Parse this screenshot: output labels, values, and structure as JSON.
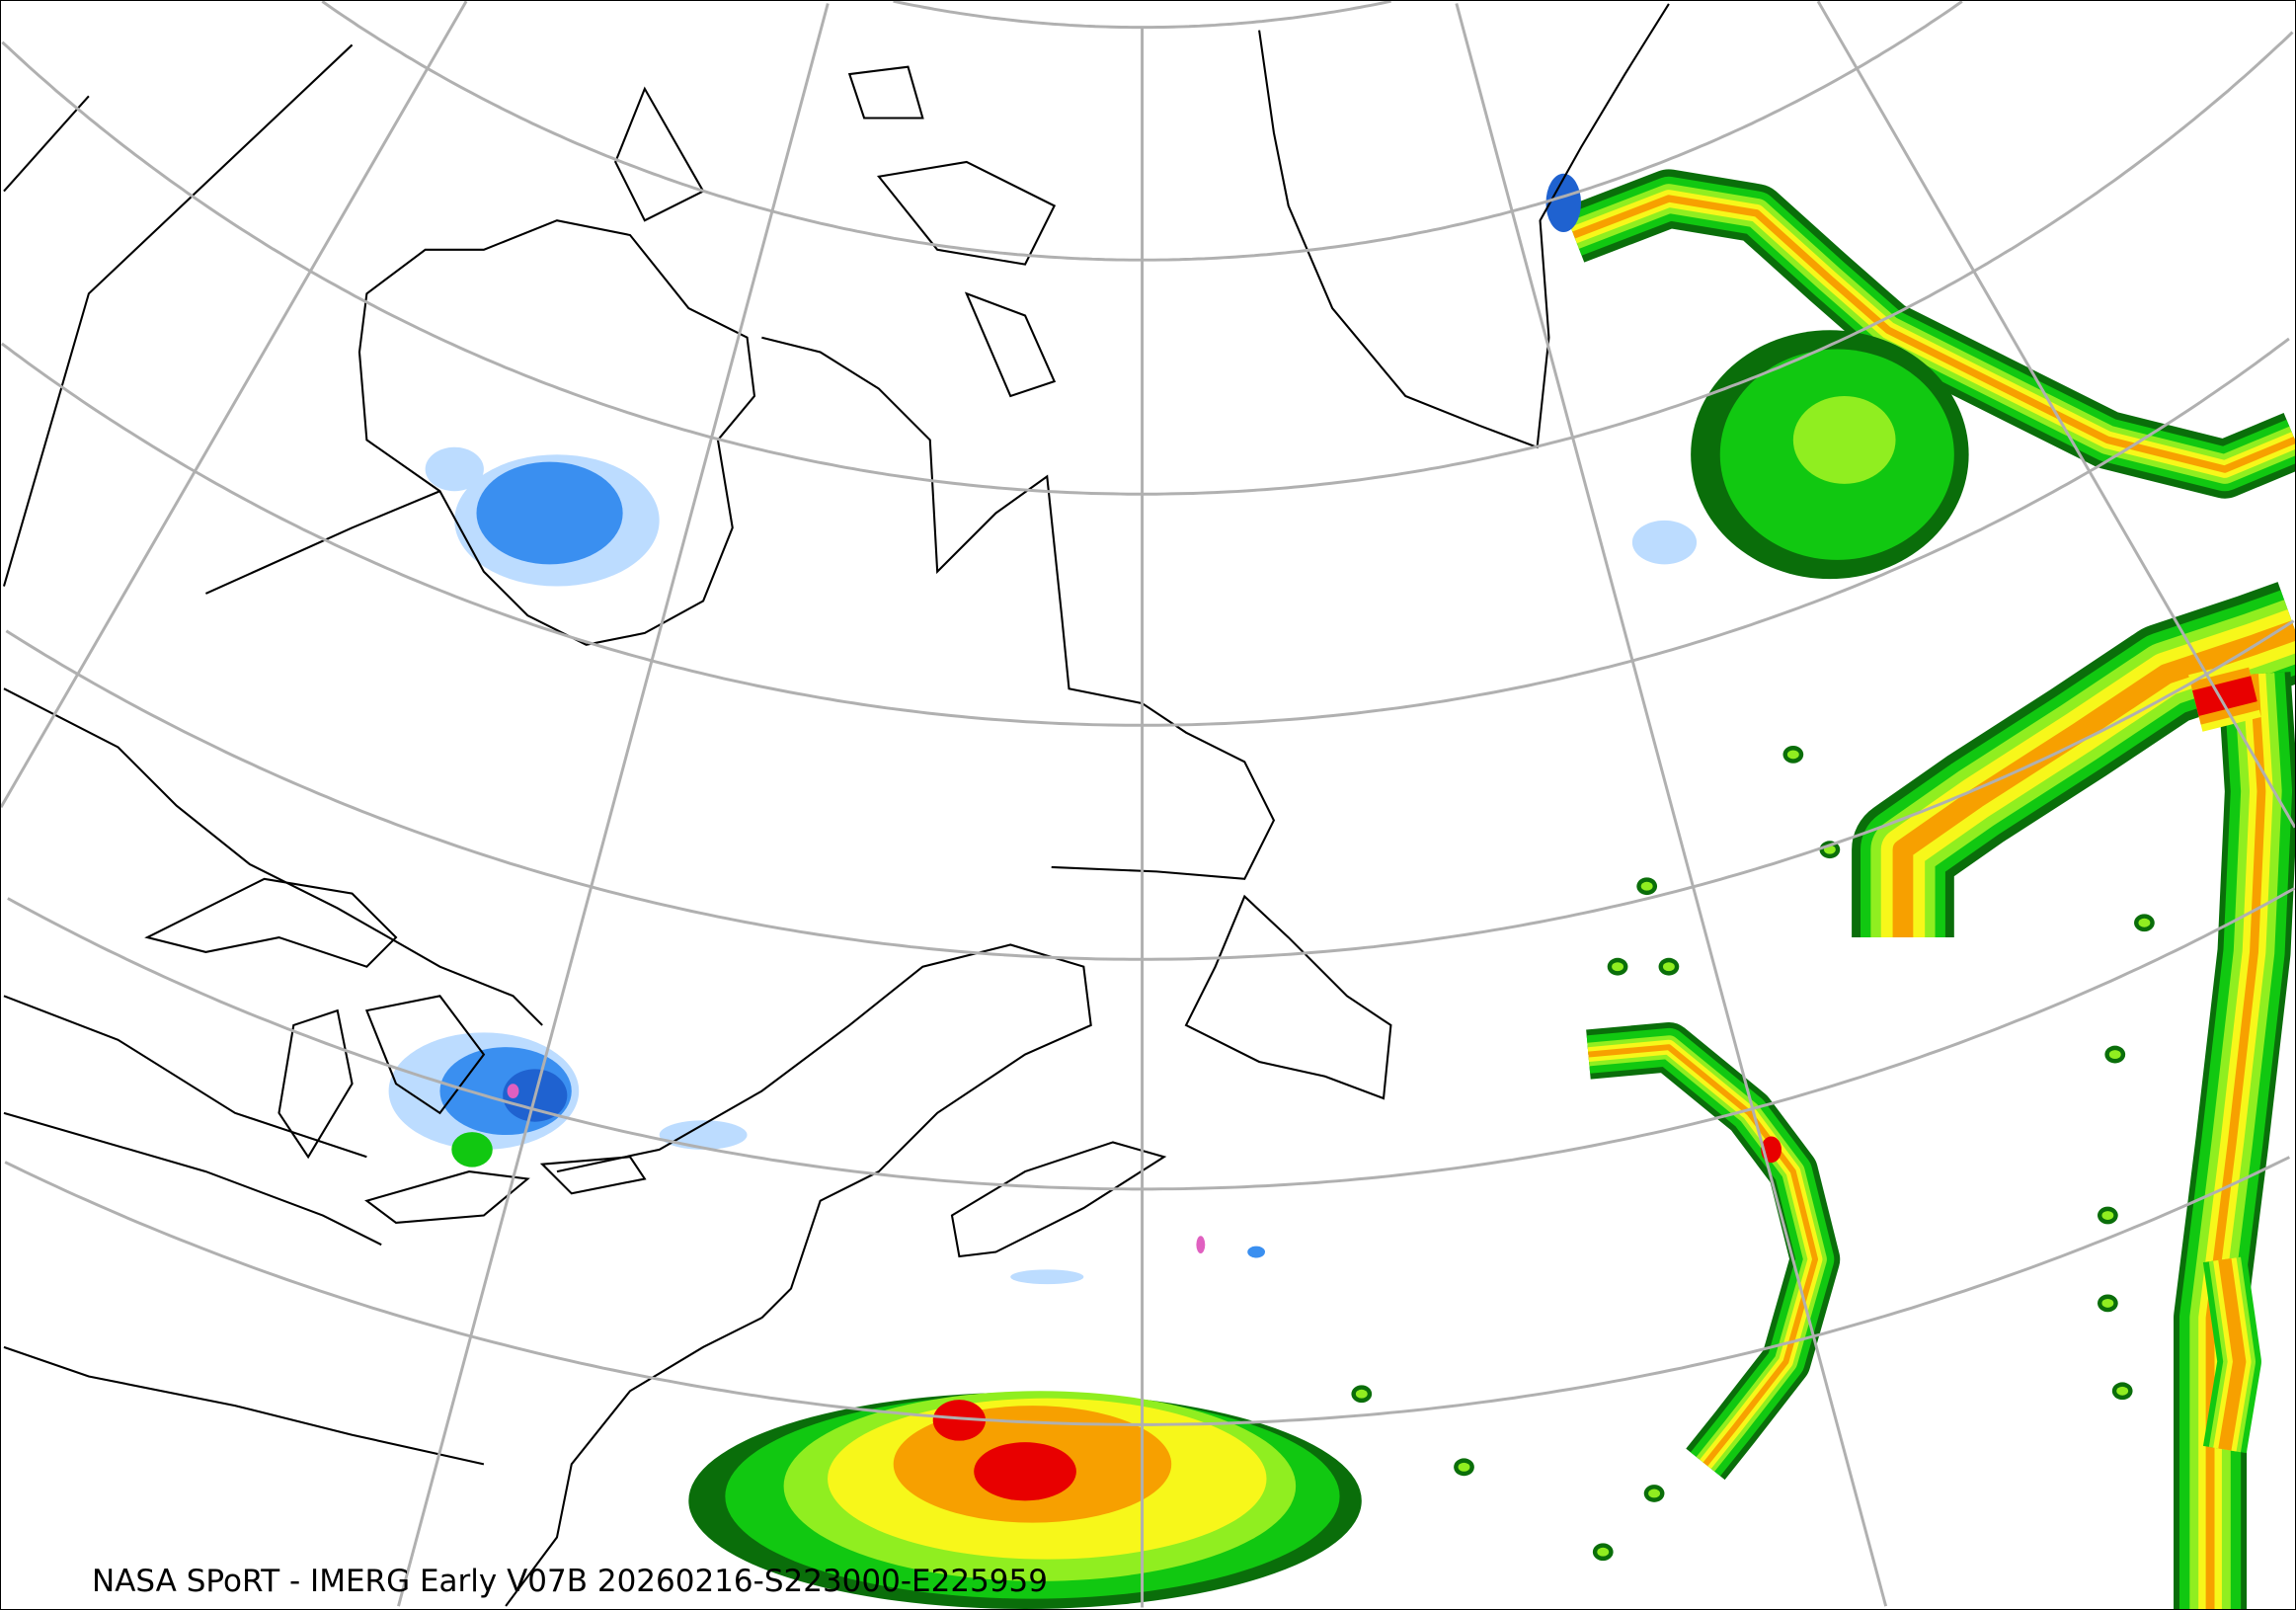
{
  "caption": "NASA SPoRT - IMERG Early V07B 20260216-S223000-E225959",
  "product": {
    "layer": "precipitation-rate",
    "colors": {
      "light_rain": "#bcdcff",
      "rain_blue": "#3a8ff0",
      "rain_dark_blue": "#1f62d0",
      "mixed_pink": "#e060c0",
      "green_dark": "#0a6e0a",
      "green": "#11c811",
      "green_light": "#90ee20",
      "yellow": "#f7f71a",
      "orange": "#f7a000",
      "red": "#e80000"
    },
    "graticule_color": "#b0b0b0",
    "coastline_color": "#000000"
  }
}
